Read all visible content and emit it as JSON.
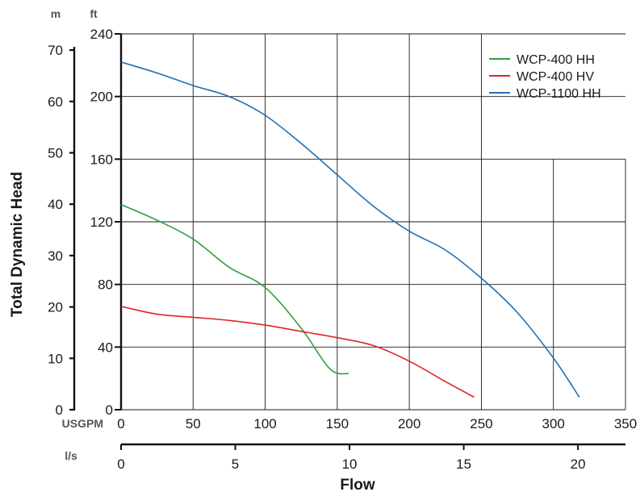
{
  "chart_data": {
    "type": "line",
    "title": "",
    "xlabel": "Flow",
    "ylabel": "Total Dynamic Head",
    "x_axes": {
      "primary": {
        "unit": "USGPM",
        "range": [
          0,
          350
        ],
        "ticks": [
          0,
          50,
          100,
          150,
          200,
          250,
          300,
          350
        ]
      },
      "secondary": {
        "unit": "l/s",
        "range": [
          0,
          22.08
        ],
        "ticks": [
          0,
          5,
          10,
          15,
          20
        ]
      }
    },
    "y_axes": {
      "primary": {
        "unit": "ft",
        "range": [
          0,
          240
        ],
        "ticks": [
          0,
          40,
          80,
          120,
          160,
          200,
          240
        ]
      },
      "secondary": {
        "unit": "m",
        "range": [
          0,
          73.15
        ],
        "ticks": [
          0,
          10,
          20,
          30,
          40,
          50,
          60,
          70
        ]
      }
    },
    "grid": true,
    "legend": "top-right",
    "series": [
      {
        "name": "WCP-400 HH",
        "color": "#2ea043",
        "x": [
          0,
          25,
          50,
          75,
          100,
          125,
          145,
          158
        ],
        "y": [
          131,
          121,
          109,
          91,
          78,
          52,
          26,
          23
        ]
      },
      {
        "name": "WCP-400 HV",
        "color": "#e02424",
        "x": [
          0,
          25,
          50,
          75,
          100,
          125,
          150,
          175,
          200,
          225,
          245
        ],
        "y": [
          66,
          61,
          59,
          57,
          54,
          50,
          46,
          41,
          31,
          18,
          8
        ]
      },
      {
        "name": "WCP-1100 HH",
        "color": "#1f6fb2",
        "x": [
          0,
          25,
          50,
          75,
          100,
          125,
          150,
          175,
          200,
          225,
          250,
          275,
          300,
          318
        ],
        "y": [
          222,
          215,
          207,
          200,
          188,
          170,
          150,
          130,
          114,
          102,
          84,
          62,
          33,
          8
        ]
      }
    ]
  }
}
